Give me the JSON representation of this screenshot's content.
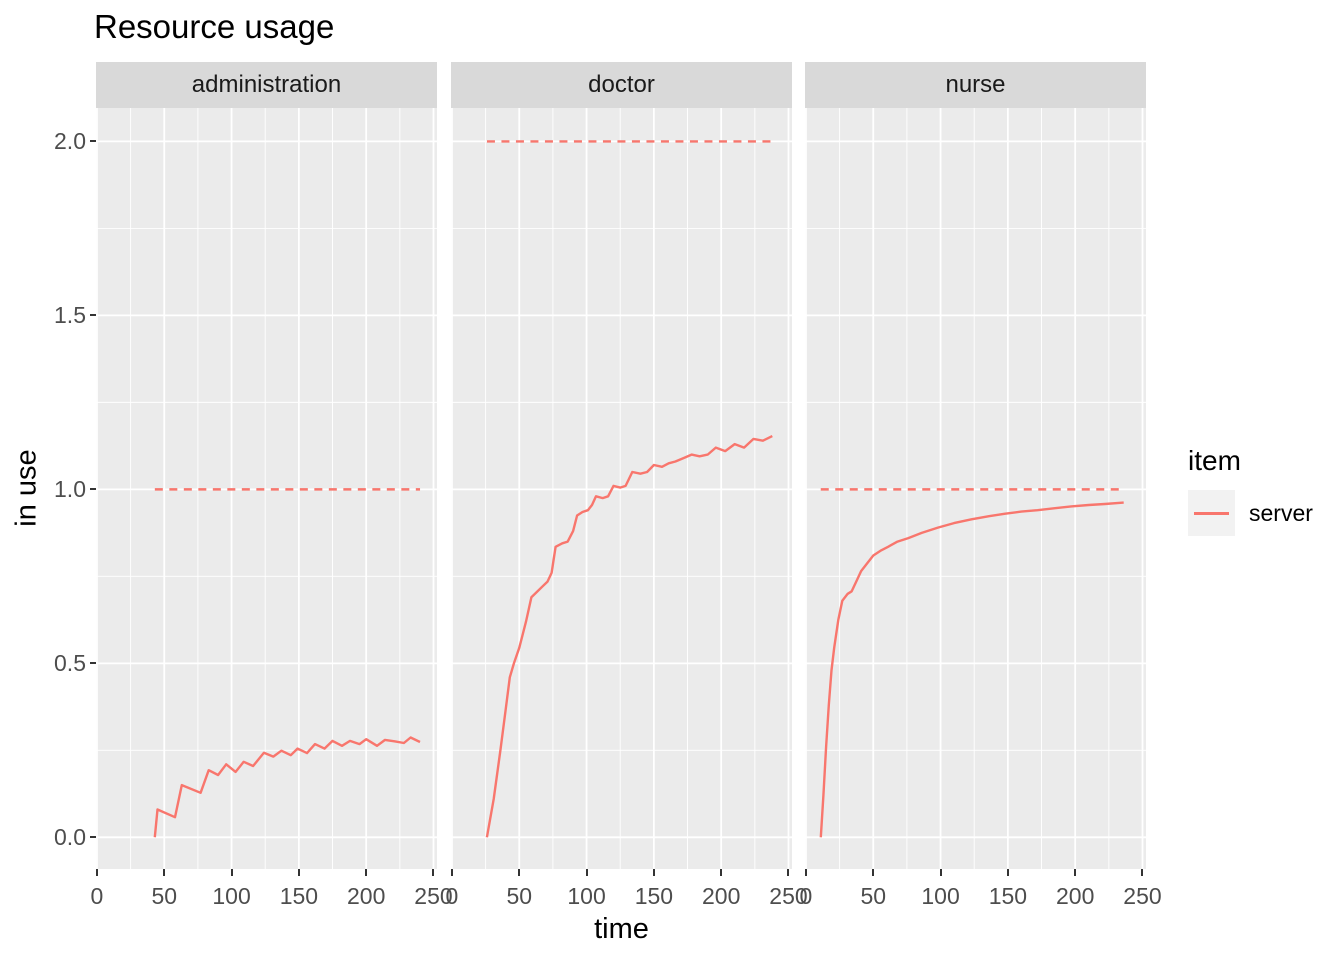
{
  "chart_data": {
    "type": "line",
    "title": "Resource usage",
    "xlabel": "time",
    "ylabel": "in use",
    "grid": true,
    "legend": {
      "title": "item",
      "position": "right",
      "entries": [
        {
          "label": "server",
          "color": "#F8766D"
        }
      ]
    },
    "x_ticks": [
      0,
      50,
      100,
      150,
      200,
      250
    ],
    "x_tick_labels": [
      "0",
      "50",
      "100",
      "150",
      "200",
      "250"
    ],
    "x_minor_ticks": [
      25,
      75,
      125,
      175,
      225
    ],
    "y_ticks": [
      0,
      0.5,
      1,
      1.5,
      2
    ],
    "y_tick_labels": [
      "0.0",
      "0.5",
      "1.0",
      "1.5",
      "2.0"
    ],
    "y_minor_ticks": [
      0.25,
      0.75,
      1.25,
      1.75
    ],
    "xlim": [
      -0.7,
      252.6
    ],
    "ylim": [
      -0.091,
      2.096
    ],
    "series_name": "server",
    "colors": {
      "line": "#F8766D",
      "panel_background": "#EBEBEB",
      "strip_background": "#D9D9D9",
      "gridline": "#FFFFFF",
      "tick_label": "#4D4D4D",
      "tick_mark": "#333333",
      "legend_key_background": "#F2F2F2"
    },
    "facets": [
      {
        "label": "administration",
        "capacity": 1.0,
        "points": [
          [
            43,
            0.0
          ],
          [
            45,
            0.08
          ],
          [
            58,
            0.058
          ],
          [
            63,
            0.15
          ],
          [
            77,
            0.128
          ],
          [
            83,
            0.193
          ],
          [
            90,
            0.179
          ],
          [
            96,
            0.21
          ],
          [
            103,
            0.188
          ],
          [
            109,
            0.217
          ],
          [
            116,
            0.205
          ],
          [
            124,
            0.243
          ],
          [
            131,
            0.232
          ],
          [
            137,
            0.249
          ],
          [
            144,
            0.236
          ],
          [
            149,
            0.255
          ],
          [
            156,
            0.242
          ],
          [
            162,
            0.268
          ],
          [
            169,
            0.255
          ],
          [
            175,
            0.277
          ],
          [
            182,
            0.263
          ],
          [
            188,
            0.277
          ],
          [
            195,
            0.268
          ],
          [
            200,
            0.282
          ],
          [
            208,
            0.263
          ],
          [
            214,
            0.28
          ],
          [
            221,
            0.276
          ],
          [
            228,
            0.271
          ],
          [
            233,
            0.287
          ],
          [
            240,
            0.274
          ]
        ]
      },
      {
        "label": "doctor",
        "capacity": 2.0,
        "points": [
          [
            26,
            0.0
          ],
          [
            31,
            0.11
          ],
          [
            36,
            0.25
          ],
          [
            40,
            0.37
          ],
          [
            43,
            0.46
          ],
          [
            46,
            0.5
          ],
          [
            50,
            0.545
          ],
          [
            55,
            0.62
          ],
          [
            59,
            0.69
          ],
          [
            63,
            0.705
          ],
          [
            67,
            0.72
          ],
          [
            71,
            0.735
          ],
          [
            74,
            0.76
          ],
          [
            77,
            0.835
          ],
          [
            82,
            0.845
          ],
          [
            86,
            0.85
          ],
          [
            90,
            0.88
          ],
          [
            93,
            0.925
          ],
          [
            97,
            0.935
          ],
          [
            101,
            0.94
          ],
          [
            104,
            0.955
          ],
          [
            107,
            0.98
          ],
          [
            112,
            0.975
          ],
          [
            116,
            0.98
          ],
          [
            120,
            1.01
          ],
          [
            125,
            1.005
          ],
          [
            129,
            1.01
          ],
          [
            134,
            1.05
          ],
          [
            140,
            1.045
          ],
          [
            145,
            1.05
          ],
          [
            150,
            1.07
          ],
          [
            156,
            1.065
          ],
          [
            161,
            1.075
          ],
          [
            166,
            1.08
          ],
          [
            172,
            1.09
          ],
          [
            178,
            1.1
          ],
          [
            184,
            1.095
          ],
          [
            190,
            1.1
          ],
          [
            196,
            1.12
          ],
          [
            203,
            1.11
          ],
          [
            210,
            1.13
          ],
          [
            217,
            1.12
          ],
          [
            224,
            1.145
          ],
          [
            231,
            1.14
          ],
          [
            238,
            1.153
          ]
        ]
      },
      {
        "label": "nurse",
        "capacity": 1.0,
        "points": [
          [
            11,
            0.0
          ],
          [
            13,
            0.12
          ],
          [
            15,
            0.26
          ],
          [
            17,
            0.38
          ],
          [
            19,
            0.48
          ],
          [
            21,
            0.545
          ],
          [
            24,
            0.625
          ],
          [
            27,
            0.68
          ],
          [
            31,
            0.7
          ],
          [
            34,
            0.707
          ],
          [
            38,
            0.74
          ],
          [
            41,
            0.765
          ],
          [
            46,
            0.79
          ],
          [
            50,
            0.81
          ],
          [
            56,
            0.825
          ],
          [
            61,
            0.835
          ],
          [
            68,
            0.85
          ],
          [
            76,
            0.86
          ],
          [
            86,
            0.875
          ],
          [
            98,
            0.89
          ],
          [
            110,
            0.903
          ],
          [
            123,
            0.914
          ],
          [
            136,
            0.923
          ],
          [
            148,
            0.93
          ],
          [
            160,
            0.936
          ],
          [
            172,
            0.94
          ],
          [
            185,
            0.946
          ],
          [
            197,
            0.951
          ],
          [
            210,
            0.955
          ],
          [
            222,
            0.958
          ],
          [
            236,
            0.962
          ]
        ]
      }
    ]
  }
}
